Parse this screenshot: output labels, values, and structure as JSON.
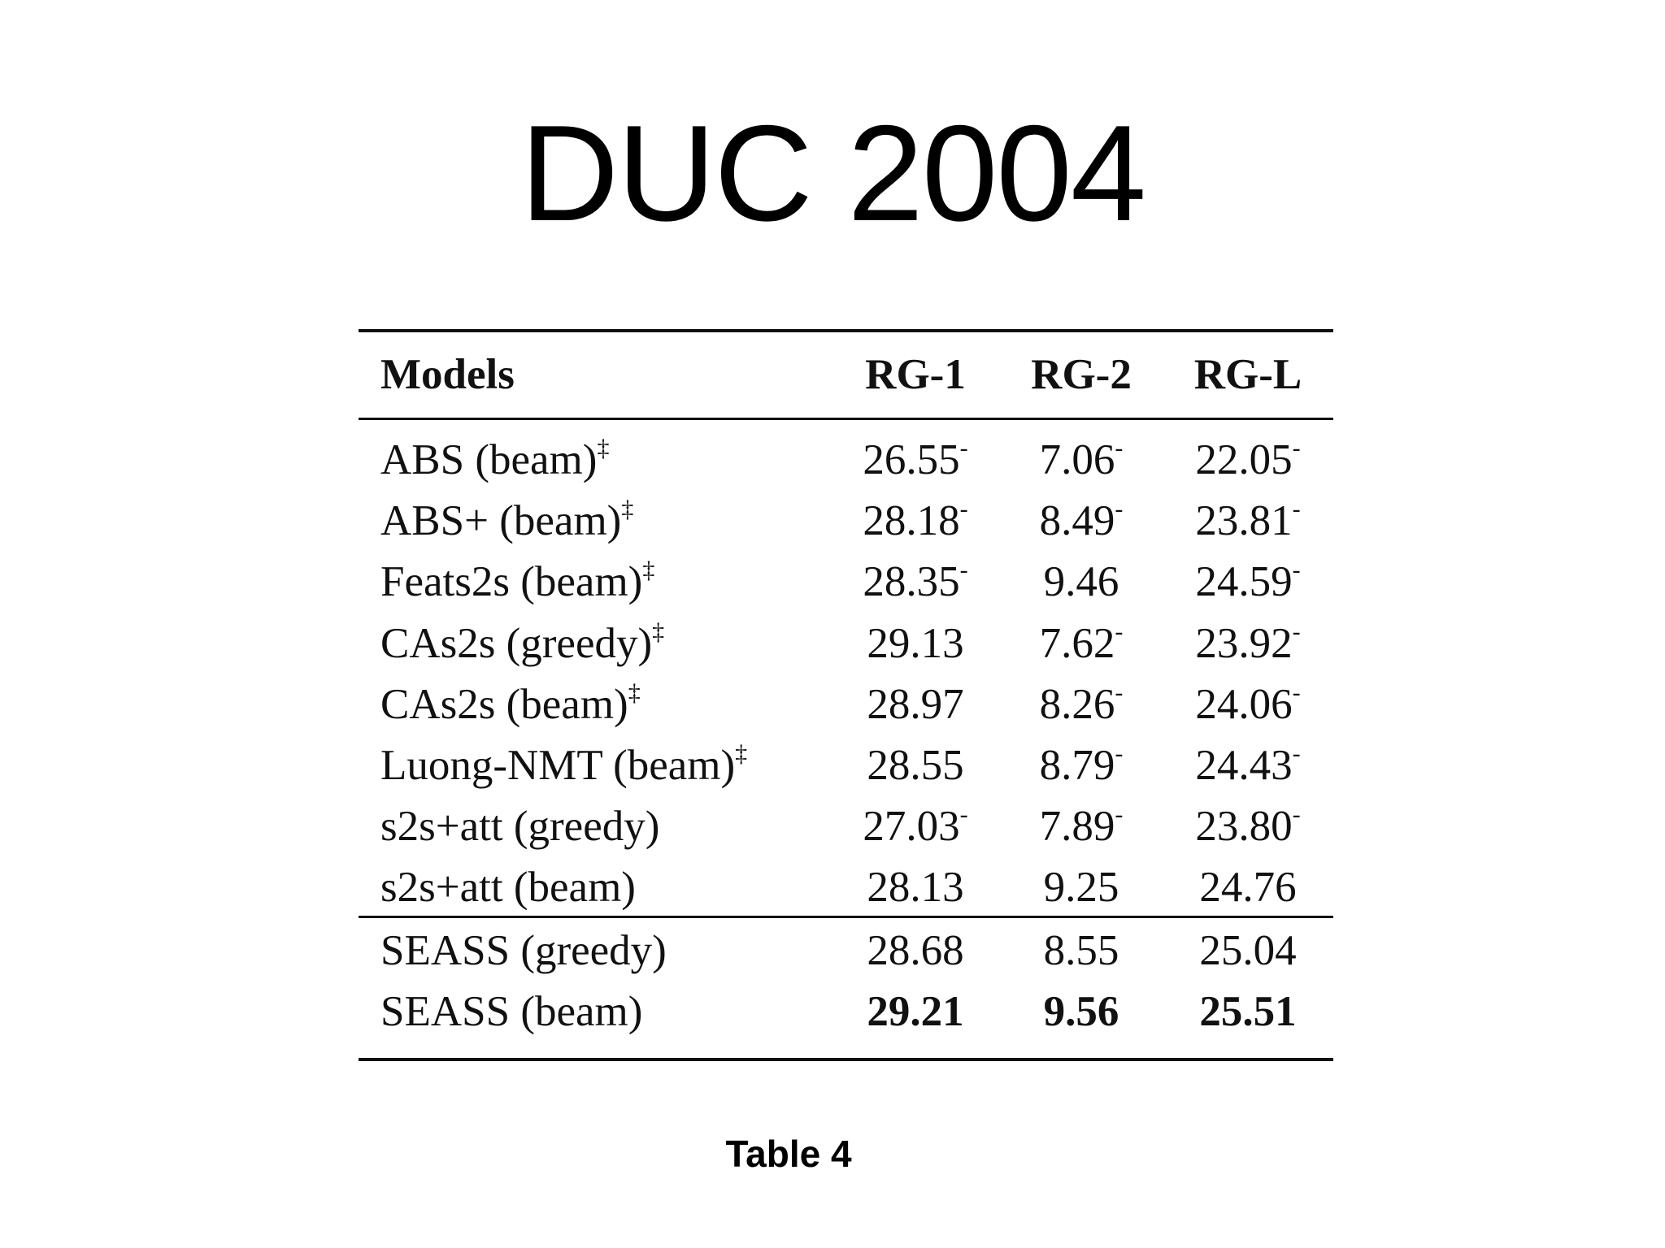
{
  "header": {
    "title": "DUC 2004"
  },
  "table": {
    "columns": [
      "Models",
      "RG-1",
      "RG-2",
      "RG-L"
    ],
    "groups": [
      [
        {
          "model": "ABS (beam)",
          "model_mark": "‡",
          "cells": [
            {
              "text": "26.55",
              "mark": "-"
            },
            {
              "text": "7.06",
              "mark": "-"
            },
            {
              "text": "22.05",
              "mark": "-"
            }
          ]
        },
        {
          "model": "ABS+ (beam)",
          "model_mark": "‡",
          "cells": [
            {
              "text": "28.18",
              "mark": "-"
            },
            {
              "text": "8.49",
              "mark": "-"
            },
            {
              "text": "23.81",
              "mark": "-"
            }
          ]
        },
        {
          "model": "Feats2s (beam)",
          "model_mark": "‡",
          "cells": [
            {
              "text": "28.35",
              "mark": "-"
            },
            {
              "text": "9.46"
            },
            {
              "text": "24.59",
              "mark": "-"
            }
          ]
        },
        {
          "model": "CAs2s (greedy)",
          "model_mark": "‡",
          "cells": [
            {
              "text": "29.13"
            },
            {
              "text": "7.62",
              "mark": "-"
            },
            {
              "text": "23.92",
              "mark": "-"
            }
          ]
        },
        {
          "model": "CAs2s (beam)",
          "model_mark": "‡",
          "cells": [
            {
              "text": "28.97"
            },
            {
              "text": "8.26",
              "mark": "-"
            },
            {
              "text": "24.06",
              "mark": "-"
            }
          ]
        },
        {
          "model": "Luong-NMT (beam)",
          "model_mark": "‡",
          "cells": [
            {
              "text": "28.55"
            },
            {
              "text": "8.79",
              "mark": "-"
            },
            {
              "text": "24.43",
              "mark": "-"
            }
          ]
        },
        {
          "model": "s2s+att (greedy)",
          "cells": [
            {
              "text": "27.03",
              "mark": "-"
            },
            {
              "text": "7.89",
              "mark": "-"
            },
            {
              "text": "23.80",
              "mark": "-"
            }
          ]
        },
        {
          "model": "s2s+att (beam)",
          "cells": [
            {
              "text": "28.13"
            },
            {
              "text": "9.25"
            },
            {
              "text": "24.76"
            }
          ]
        }
      ],
      [
        {
          "model": "SEASS (greedy)",
          "cells": [
            {
              "text": "28.68"
            },
            {
              "text": "8.55"
            },
            {
              "text": "25.04"
            }
          ]
        },
        {
          "model": "SEASS (beam)",
          "bold": true,
          "cells": [
            {
              "text": "29.21"
            },
            {
              "text": "9.56"
            },
            {
              "text": "25.51"
            }
          ]
        }
      ]
    ]
  },
  "caption": "Table 4"
}
